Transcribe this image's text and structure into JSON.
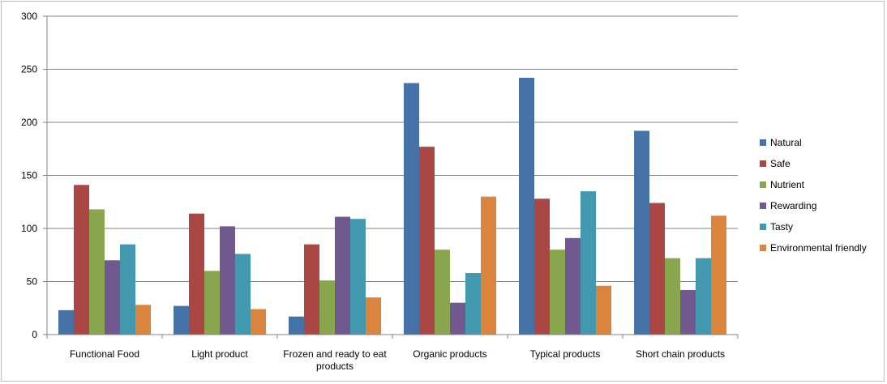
{
  "chart_data": {
    "type": "bar",
    "title": "",
    "xlabel": "",
    "ylabel": "",
    "ylim": [
      0,
      300
    ],
    "yticks": [
      0,
      50,
      100,
      150,
      200,
      250,
      300
    ],
    "grid": true,
    "legend_position": "right",
    "categories": [
      [
        "Functional Food"
      ],
      [
        "Light product"
      ],
      [
        "Frozen and ready to eat",
        "products"
      ],
      [
        "Organic products"
      ],
      [
        "Typical products"
      ],
      [
        "Short chain products"
      ]
    ],
    "series": [
      {
        "name": "Natural",
        "color": "#4572a7",
        "values": [
          23,
          27,
          17,
          237,
          242,
          192
        ]
      },
      {
        "name": "Safe",
        "color": "#aa4643",
        "values": [
          141,
          114,
          85,
          177,
          128,
          124
        ]
      },
      {
        "name": "Nutrient",
        "color": "#89a54e",
        "values": [
          118,
          60,
          51,
          80,
          80,
          72
        ]
      },
      {
        "name": "Rewarding",
        "color": "#71588f",
        "values": [
          70,
          102,
          111,
          30,
          91,
          42
        ]
      },
      {
        "name": "Tasty",
        "color": "#4198af",
        "values": [
          85,
          76,
          109,
          58,
          135,
          72
        ]
      },
      {
        "name": "Environmental friendly",
        "color": "#db843d",
        "values": [
          28,
          24,
          35,
          130,
          46,
          112
        ]
      }
    ]
  }
}
